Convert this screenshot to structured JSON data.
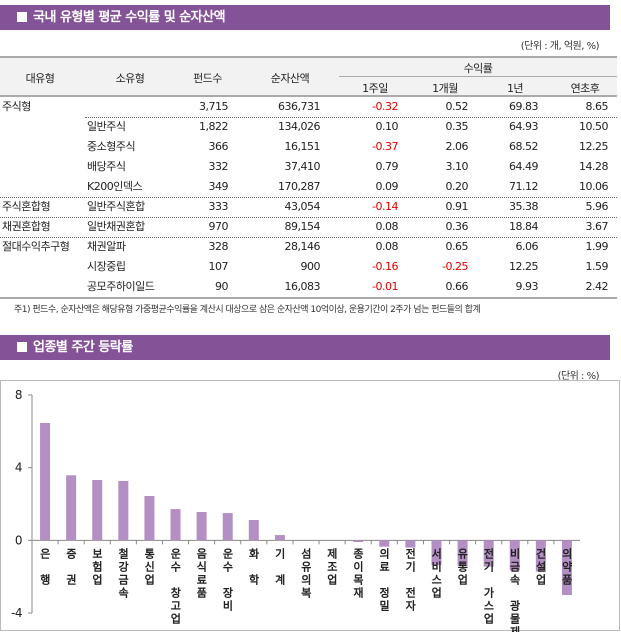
{
  "section1": {
    "title": "국내 유형별 평균 수익률 및 순자산액",
    "unit": "(단위 : 개, 억원, %)"
  },
  "table": {
    "headers": {
      "major": "대유형",
      "minor": "소유형",
      "funds": "펀드수",
      "nav": "순자산액",
      "returns": "수익률",
      "w1": "1주일",
      "m1": "1개월",
      "y1": "1년",
      "ytd": "연초후"
    },
    "rows": [
      {
        "major": "주식형",
        "minor": "",
        "funds": "3,715",
        "nav": "636,731",
        "w1": "-0.32",
        "m1": "0.52",
        "y1": "69.83",
        "ytd": "8.65"
      },
      {
        "major": "",
        "minor": "일반주식",
        "funds": "1,822",
        "nav": "134,026",
        "w1": "0.10",
        "m1": "0.35",
        "y1": "64.93",
        "ytd": "10.50"
      },
      {
        "major": "",
        "minor": "중소형주식",
        "funds": "366",
        "nav": "16,151",
        "w1": "-0.37",
        "m1": "2.06",
        "y1": "68.52",
        "ytd": "12.25"
      },
      {
        "major": "",
        "minor": "배당주식",
        "funds": "332",
        "nav": "37,410",
        "w1": "0.79",
        "m1": "3.10",
        "y1": "64.49",
        "ytd": "14.28"
      },
      {
        "major": "",
        "minor": "K200인덱스",
        "funds": "349",
        "nav": "170,287",
        "w1": "0.09",
        "m1": "0.20",
        "y1": "71.12",
        "ytd": "10.06"
      },
      {
        "major": "주식혼합형",
        "minor": "일반주식혼합",
        "funds": "333",
        "nav": "43,054",
        "w1": "-0.14",
        "m1": "0.91",
        "y1": "35.38",
        "ytd": "5.96"
      },
      {
        "major": "채권혼합형",
        "minor": "일반채권혼합",
        "funds": "970",
        "nav": "89,154",
        "w1": "0.08",
        "m1": "0.36",
        "y1": "18.84",
        "ytd": "3.67"
      },
      {
        "major": "절대수익추구형",
        "minor": "채권알파",
        "funds": "328",
        "nav": "28,146",
        "w1": "0.08",
        "m1": "0.65",
        "y1": "6.06",
        "ytd": "1.99"
      },
      {
        "major": "",
        "minor": "시장중립",
        "funds": "107",
        "nav": "900",
        "w1": "-0.16",
        "m1": "-0.25",
        "y1": "12.25",
        "ytd": "1.59"
      },
      {
        "major": "",
        "minor": "공모주하이일드",
        "funds": "90",
        "nav": "16,083",
        "w1": "-0.01",
        "m1": "0.66",
        "y1": "9.93",
        "ytd": "2.42"
      }
    ],
    "note": "주1) 펀드수, 순자산액은 해당유형 가중평균수익률을 계산시 대상으로 삼은 순자산액 10억이상, 운용기간이 2주가 넘는 펀드들의 합계"
  },
  "section2": {
    "title": "업종별 주간 등락률",
    "unit": "(단위 : %)"
  },
  "colors": {
    "accent": "#845397",
    "bar": "#b48fc3",
    "negative": "#e00000"
  },
  "chart_data": {
    "type": "bar",
    "categories": [
      "은행",
      "증권",
      "보험업",
      "철강금속",
      "통신업",
      "운수창고업",
      "음식료품",
      "운수장비",
      "화학",
      "기계",
      "섬유의복",
      "제조업",
      "종이목재",
      "의료정밀",
      "전기전자",
      "서비스업",
      "유통업",
      "전기가스업",
      "비금속광물제품",
      "건설업",
      "의약품"
    ],
    "label_lines": [
      [
        "은",
        "",
        "행"
      ],
      [
        "증",
        "",
        "권"
      ],
      [
        "보",
        "험",
        "업"
      ],
      [
        "철",
        "강",
        "금",
        "속"
      ],
      [
        "통",
        "신",
        "업"
      ],
      [
        "운",
        "수",
        "",
        "창",
        "고",
        "업"
      ],
      [
        "음",
        "식",
        "료",
        "품"
      ],
      [
        "운",
        "수",
        "",
        "장",
        "비"
      ],
      [
        "화",
        "",
        "학"
      ],
      [
        "기",
        "",
        "계"
      ],
      [
        "섬",
        "유",
        "의",
        "복"
      ],
      [
        "제",
        "조",
        "업"
      ],
      [
        "종",
        "이",
        "목",
        "재"
      ],
      [
        "의",
        "료",
        "",
        "정",
        "밀"
      ],
      [
        "전",
        "기",
        "",
        "전",
        "자"
      ],
      [
        "서",
        "비",
        "스",
        "업"
      ],
      [
        "유",
        "통",
        "업"
      ],
      [
        "전",
        "기",
        "",
        "가",
        "스",
        "업"
      ],
      [
        "비",
        "금",
        "속",
        "",
        "광",
        "물",
        "제",
        "품"
      ],
      [
        "건",
        "설",
        "업"
      ],
      [
        "의",
        "약",
        "품"
      ]
    ],
    "values": [
      6.46,
      3.58,
      3.32,
      3.27,
      2.44,
      1.72,
      1.56,
      1.5,
      1.12,
      0.29,
      0.0,
      0.0,
      -0.09,
      -0.35,
      -0.4,
      -1.36,
      -1.41,
      -1.45,
      -1.65,
      -1.72,
      -3.01
    ],
    "ylim": [
      -4,
      8
    ],
    "yticks": [
      "8",
      "4",
      "0",
      "-4"
    ],
    "grid": false,
    "legend": "none"
  }
}
